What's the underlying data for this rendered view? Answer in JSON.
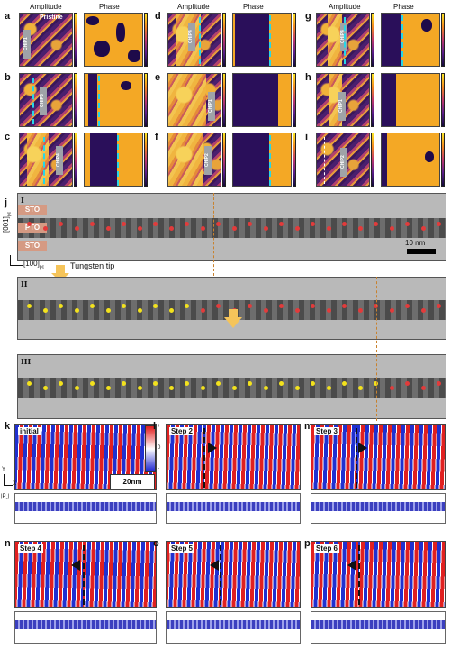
{
  "afm": {
    "header_amplitude": "Amplitude",
    "header_phase": "Phase",
    "pristine": "Pristine",
    "panels": [
      {
        "letter": "a",
        "chip": "CHIP1"
      },
      {
        "letter": "b",
        "chip": "CHIP3"
      },
      {
        "letter": "c",
        "chip": "CHIP4"
      },
      {
        "letter": "d",
        "chip": "CHIP4"
      },
      {
        "letter": "e",
        "chip": "CHIP1"
      },
      {
        "letter": "f",
        "chip": "CHIP2"
      },
      {
        "letter": "g",
        "chip": "CHIP4"
      },
      {
        "letter": "h",
        "chip": "CHIP1"
      },
      {
        "letter": "i",
        "chip": "CHIP2"
      }
    ]
  },
  "tem": {
    "letter": "j",
    "stages": [
      "I",
      "II",
      "III"
    ],
    "layer_sto": "STO",
    "layer_pto": "PTO",
    "axis_y": "[001]",
    "axis_y_sub": "pc",
    "axis_x": "[100]",
    "axis_x_sub": "pc",
    "scalebar": "10 nm",
    "tip": "Tungsten tip"
  },
  "sim": {
    "panels": [
      {
        "letter": "k",
        "label": "initial"
      },
      {
        "letter": "l",
        "label": "Step 2"
      },
      {
        "letter": "m",
        "label": "Step 3"
      },
      {
        "letter": "n",
        "label": "Step 4"
      },
      {
        "letter": "o",
        "label": "Step 5"
      },
      {
        "letter": "p",
        "label": "Step 6"
      }
    ],
    "scalebar": "20nm",
    "axis_y": "Y",
    "axis_x": "X",
    "px_label": "|P",
    "px_sub": "x",
    "cbar_top": "+",
    "cbar_mid": "0",
    "cbar_bot": "-"
  },
  "colors": {
    "red_dot": "#e23b3b",
    "yellow_dot": "#f3e21d",
    "cyan": "#27d6e8"
  }
}
